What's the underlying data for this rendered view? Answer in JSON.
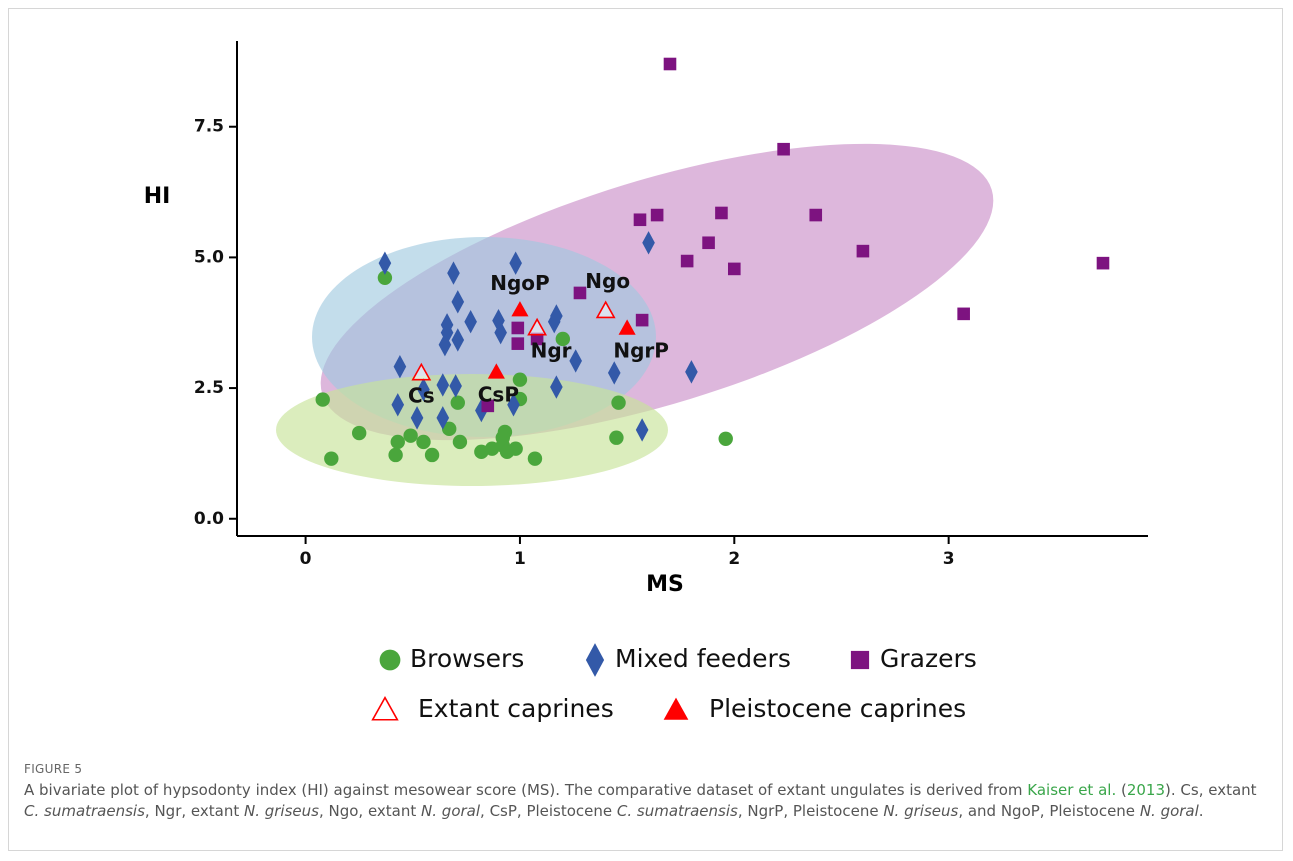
{
  "chart_data": {
    "type": "scatter",
    "xlabel": "MS",
    "ylabel": "HI",
    "xlim": [
      -0.32,
      3.93
    ],
    "ylim": [
      -0.33,
      9.14
    ],
    "xticks": [
      0,
      1,
      2,
      3
    ],
    "yticks": [
      {
        "value": 0,
        "label": "0.0"
      },
      2.5,
      {
        "value": 5,
        "label": "5.0"
      },
      7.5
    ],
    "grid": false,
    "series": [
      {
        "name": "Browsers",
        "color": "#4aa63c",
        "marker": "circle",
        "x": [
          0.37,
          0.08,
          0.12,
          0.25,
          0.42,
          0.43,
          0.49,
          0.55,
          0.59,
          0.67,
          0.71,
          0.72,
          0.82,
          0.87,
          0.92,
          0.93,
          0.92,
          0.94,
          0.98,
          1.0,
          1.0,
          1.07,
          1.2,
          1.46,
          1.45,
          1.96
        ],
        "values": [
          4.61,
          2.28,
          1.15,
          1.64,
          1.22,
          1.47,
          1.59,
          1.47,
          1.22,
          1.72,
          2.22,
          1.47,
          1.28,
          1.34,
          1.4,
          1.66,
          1.55,
          1.28,
          1.34,
          2.66,
          2.29,
          1.15,
          3.44,
          2.22,
          1.55,
          1.53
        ]
      },
      {
        "name": "Mixed feeders",
        "color": "#3359a8",
        "marker": "diamond",
        "x": [
          0.37,
          0.44,
          0.43,
          0.52,
          0.55,
          0.64,
          0.64,
          0.65,
          0.66,
          0.66,
          0.69,
          0.71,
          0.71,
          0.7,
          0.77,
          0.82,
          0.9,
          0.91,
          0.98,
          0.97,
          1.16,
          1.17,
          1.17,
          1.26,
          1.44,
          1.57,
          1.6,
          1.8
        ],
        "values": [
          4.89,
          2.91,
          2.18,
          1.93,
          2.47,
          2.56,
          1.93,
          3.33,
          3.56,
          3.71,
          4.7,
          4.15,
          3.42,
          2.54,
          3.77,
          2.07,
          3.79,
          3.56,
          4.89,
          2.18,
          3.77,
          3.88,
          2.52,
          3.02,
          2.79,
          1.7,
          5.28,
          2.81
        ]
      },
      {
        "name": "Grazers",
        "color": "#7d1380",
        "marker": "square",
        "x": [
          1.7,
          1.56,
          1.64,
          1.94,
          1.88,
          1.78,
          2.0,
          2.23,
          2.38,
          2.6,
          3.07,
          3.72,
          1.28,
          1.57,
          0.99,
          0.99,
          1.08,
          0.85
        ],
        "values": [
          8.7,
          5.72,
          5.81,
          5.85,
          5.28,
          4.93,
          4.78,
          7.07,
          5.81,
          5.12,
          3.92,
          4.89,
          4.32,
          3.8,
          3.65,
          3.35,
          3.44,
          2.16
        ]
      },
      {
        "name": "Extant caprines",
        "color": "#ff0000",
        "marker": "triangle-open",
        "labels": [
          "Cs",
          "Ngr",
          "Ngo"
        ],
        "x": [
          0.54,
          1.08,
          1.4
        ],
        "values": [
          2.79,
          3.65,
          3.98
        ]
      },
      {
        "name": "Pleistocene caprines",
        "color": "#ff0000",
        "marker": "triangle",
        "labels": [
          "CsP",
          "NgrP",
          "NgoP"
        ],
        "x": [
          0.89,
          1.5,
          1.0
        ],
        "values": [
          2.81,
          3.65,
          4.0
        ]
      }
    ]
  },
  "caption": {
    "label": "FIGURE 5",
    "parts": [
      "A bivariate plot of hypsodonty index (HI) against mesowear score (MS). The comparative dataset of extant ungulates is derived from ",
      "Kaiser et al.",
      " (",
      "2013",
      "). Cs, extant ",
      "C. sumatraensis",
      ", Ngr, extant ",
      "N. griseus",
      ", Ngo, extant ",
      "N. goral",
      ", CsP, Pleistocene ",
      "C. sumatraensis",
      ", NgrP, Pleistocene ",
      "N. griseus",
      ", and NgoP, Pleistocene ",
      "N. goral",
      "."
    ]
  }
}
